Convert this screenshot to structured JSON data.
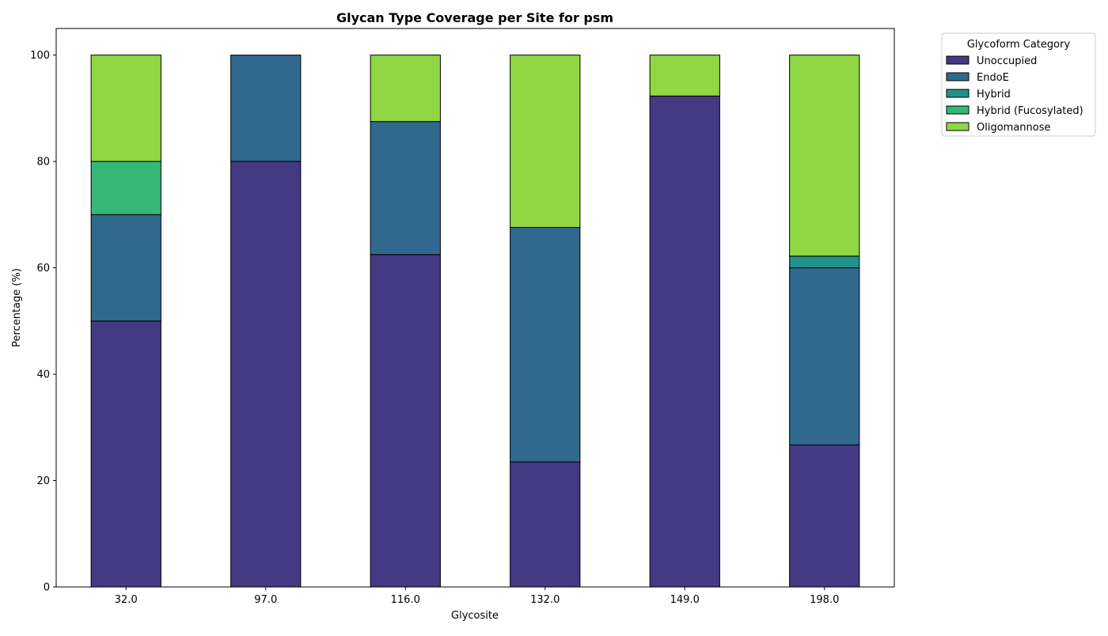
{
  "chart_data": {
    "type": "bar",
    "stacked": true,
    "title": "Glycan Type Coverage per Site for psm",
    "xlabel": "Glycosite",
    "ylabel": "Percentage (%)",
    "ylim": [
      0,
      105
    ],
    "yticks": [
      0,
      20,
      40,
      60,
      80,
      100
    ],
    "grid": false,
    "legend_title": "Glycoform Category",
    "legend_position": "outside-top-right",
    "categories": [
      "32.0",
      "97.0",
      "116.0",
      "132.0",
      "149.0",
      "198.0"
    ],
    "series": [
      {
        "name": "Unoccupied",
        "color": "#443983",
        "values": [
          50.0,
          80.0,
          62.5,
          23.5,
          92.3,
          26.7
        ]
      },
      {
        "name": "EndoE",
        "color": "#31688e",
        "values": [
          20.0,
          20.0,
          25.0,
          44.1,
          0.0,
          33.3
        ]
      },
      {
        "name": "Hybrid",
        "color": "#21918c",
        "values": [
          0.0,
          0.0,
          0.0,
          0.0,
          0.0,
          2.2
        ]
      },
      {
        "name": "Hybrid (Fucosylated)",
        "color": "#35b779",
        "values": [
          10.0,
          0.0,
          0.0,
          0.0,
          0.0,
          0.0
        ]
      },
      {
        "name": "Oligomannose",
        "color": "#90d743",
        "values": [
          20.0,
          0.0,
          12.5,
          32.4,
          7.7,
          37.8
        ]
      }
    ]
  }
}
